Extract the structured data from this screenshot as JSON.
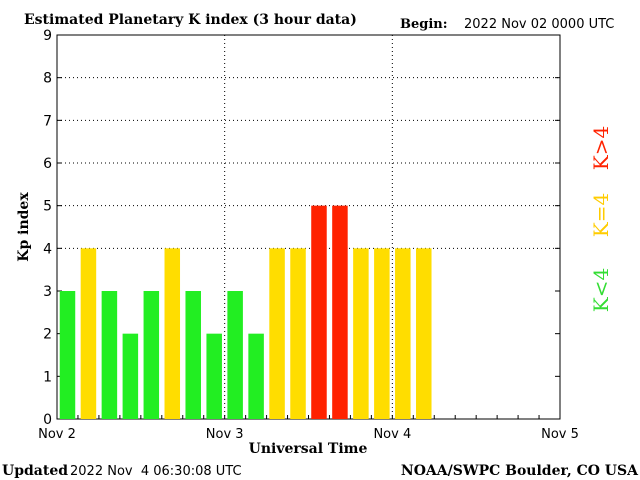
{
  "header": {
    "title": "Estimated Planetary K index (3 hour data)",
    "begin_label": "Begin:",
    "begin_value": "2022 Nov 02 0000 UTC"
  },
  "footer": {
    "updated_label": "Updated",
    "updated_value": "2022 Nov  4 06:30:08 UTC",
    "source": "NOAA/SWPC Boulder, CO USA"
  },
  "legend": {
    "high": "K>4",
    "mid": "K=4",
    "low": "K<4"
  },
  "colors": {
    "low": "#22ee22",
    "mid": "#ffdd00",
    "high": "#ff2200",
    "legend_low": "#33dd33",
    "legend_mid": "#ffcc00",
    "legend_high": "#ff2200",
    "grid": "#000000",
    "text": "#000000"
  },
  "chart_data": {
    "type": "bar",
    "title": "Estimated Planetary K index (3 hour data)",
    "xlabel": "Universal Time",
    "ylabel": "Kp index",
    "ylim": [
      0,
      9
    ],
    "yticks": [
      "0",
      "1",
      "2",
      "3",
      "4",
      "5",
      "6",
      "7",
      "8",
      "9"
    ],
    "xticks": [
      "Nov 2",
      "Nov 3",
      "Nov 4",
      "Nov 5"
    ],
    "x_interval_hours": 3,
    "slots_total": 24,
    "values": [
      3,
      4,
      3,
      2,
      3,
      4,
      3,
      2,
      3,
      2,
      4,
      4,
      5,
      5,
      4,
      4,
      4,
      4
    ],
    "grid": true
  }
}
